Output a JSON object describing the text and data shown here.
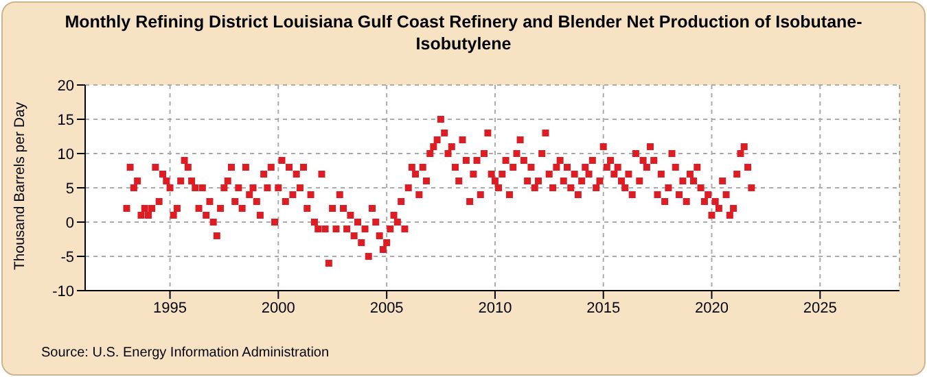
{
  "chart_data": {
    "type": "scatter",
    "title": "Monthly Refining District Louisiana Gulf Coast Refinery and Blender Net Production of Isobutane-Isobutylene",
    "ylabel": "Thousand Barrels per Day",
    "annotations": [
      "Source: U.S. Energy Information Administration"
    ],
    "x": [
      "1993-01",
      "1993-03",
      "1993-05",
      "1993-07",
      "1993-09",
      "1993-11",
      "1994-01",
      "1994-03",
      "1994-05",
      "1994-07",
      "1994-09",
      "1994-11",
      "1995-01",
      "1995-03",
      "1995-05",
      "1995-07",
      "1995-09",
      "1995-11",
      "1996-01",
      "1996-03",
      "1996-05",
      "1996-07",
      "1996-09",
      "1996-11",
      "1997-01",
      "1997-03",
      "1997-05",
      "1997-07",
      "1997-09",
      "1997-11",
      "1998-01",
      "1998-03",
      "1998-05",
      "1998-07",
      "1998-09",
      "1998-11",
      "1999-01",
      "1999-03",
      "1999-05",
      "1999-07",
      "1999-09",
      "1999-11",
      "2000-01",
      "2000-03",
      "2000-05",
      "2000-07",
      "2000-09",
      "2000-11",
      "2001-01",
      "2001-03",
      "2001-05",
      "2001-07",
      "2001-09",
      "2001-11",
      "2002-01",
      "2002-03",
      "2002-05",
      "2002-07",
      "2002-09",
      "2002-11",
      "2003-01",
      "2003-03",
      "2003-05",
      "2003-07",
      "2003-09",
      "2003-11",
      "2004-01",
      "2004-03",
      "2004-05",
      "2004-07",
      "2004-09",
      "2004-11",
      "2005-01",
      "2005-03",
      "2005-05",
      "2005-07",
      "2005-09",
      "2005-11",
      "2006-01",
      "2006-03",
      "2006-05",
      "2006-07",
      "2006-09",
      "2006-11",
      "2007-01",
      "2007-03",
      "2007-05",
      "2007-07",
      "2007-09",
      "2007-11",
      "2008-01",
      "2008-03",
      "2008-05",
      "2008-07",
      "2008-09",
      "2008-11",
      "2009-01",
      "2009-03",
      "2009-05",
      "2009-07",
      "2009-09",
      "2009-11",
      "2010-01",
      "2010-03",
      "2010-05",
      "2010-07",
      "2010-09",
      "2010-11",
      "2011-01",
      "2011-03",
      "2011-05",
      "2011-07",
      "2011-09",
      "2011-11",
      "2012-01",
      "2012-03",
      "2012-05",
      "2012-07",
      "2012-09",
      "2012-11",
      "2013-01",
      "2013-03",
      "2013-05",
      "2013-07",
      "2013-09",
      "2013-11",
      "2014-01",
      "2014-03",
      "2014-05",
      "2014-07",
      "2014-09",
      "2014-11",
      "2015-01",
      "2015-03",
      "2015-05",
      "2015-07",
      "2015-09",
      "2015-11",
      "2016-01",
      "2016-03",
      "2016-05",
      "2016-07",
      "2016-09",
      "2016-11",
      "2017-01",
      "2017-03",
      "2017-05",
      "2017-07",
      "2017-09",
      "2017-11",
      "2018-01",
      "2018-03",
      "2018-05",
      "2018-07",
      "2018-09",
      "2018-11",
      "2019-01",
      "2019-03",
      "2019-05",
      "2019-07",
      "2019-09",
      "2019-11",
      "2020-01",
      "2020-03",
      "2020-05",
      "2020-07",
      "2020-09",
      "2020-11",
      "2021-01",
      "2021-03",
      "2021-05",
      "2021-07",
      "2021-09",
      "2021-11"
    ],
    "series": [
      {
        "color": "#dd1c24",
        "values": [
          2,
          8,
          5,
          6,
          1,
          2,
          1,
          2,
          8,
          3,
          7,
          6,
          5,
          1,
          2,
          6,
          9,
          8,
          6,
          5,
          2,
          5,
          1,
          3,
          0,
          -2,
          2,
          5,
          6,
          8,
          3,
          5,
          2,
          8,
          4,
          5,
          3,
          1,
          7,
          5,
          8,
          0,
          5,
          9,
          3,
          8,
          4,
          7,
          5,
          8,
          2,
          4,
          0,
          -1,
          7,
          -1,
          -6,
          2,
          -1,
          4,
          2,
          -1,
          1,
          -2,
          0,
          -3,
          -1,
          -5,
          2,
          0,
          -2,
          -4,
          -3,
          -1,
          1,
          0,
          3,
          -1,
          5,
          8,
          7,
          4,
          8,
          6,
          10,
          11,
          12,
          15,
          13,
          10,
          11,
          8,
          6,
          12,
          9,
          3,
          7,
          9,
          4,
          10,
          13,
          7,
          6,
          5,
          7,
          9,
          4,
          8,
          10,
          12,
          9,
          6,
          8,
          5,
          6,
          10,
          13,
          7,
          5,
          8,
          9,
          6,
          8,
          5,
          7,
          4,
          6,
          8,
          7,
          9,
          5,
          6,
          11,
          8,
          9,
          7,
          8,
          6,
          5,
          7,
          4,
          10,
          6,
          9,
          8,
          11,
          9,
          4,
          7,
          3,
          5,
          10,
          8,
          4,
          6,
          3,
          7,
          6,
          8,
          5,
          3,
          4,
          1,
          3,
          2,
          6,
          4,
          1,
          2,
          7,
          10,
          11,
          8,
          5
        ]
      }
    ],
    "xlim": [
      "1991-02",
      "2028-09"
    ],
    "xticks": [
      "1995",
      "2000",
      "2005",
      "2010",
      "2015",
      "2020",
      "2025"
    ],
    "ylim": [
      -10,
      20
    ],
    "yticks": [
      -10,
      -5,
      0,
      5,
      10,
      15,
      20
    ],
    "grid": true,
    "marker": "square"
  }
}
